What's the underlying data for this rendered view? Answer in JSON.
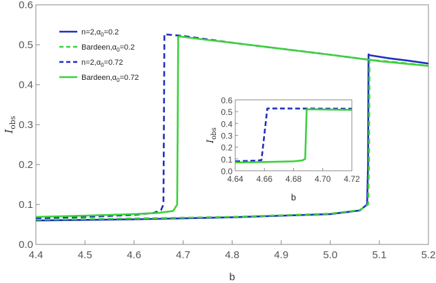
{
  "chart_data": [
    {
      "type": "line",
      "xlabel": "b",
      "ylabel": "I",
      "ylabel_sub": "obs",
      "xlim": [
        4.4,
        5.2
      ],
      "ylim": [
        0.0,
        0.6
      ],
      "xticks": [
        4.4,
        4.5,
        4.6,
        4.7,
        4.8,
        4.9,
        5.0,
        5.1,
        5.2
      ],
      "xtick_labels": [
        "4.4",
        "4.5",
        "4.6",
        "4.7",
        "4.8",
        "4.9",
        "5.0",
        "5.1",
        "5.2"
      ],
      "yticks": [
        0.0,
        0.1,
        0.2,
        0.3,
        0.4,
        0.5,
        0.6
      ],
      "ytick_labels": [
        "0.0",
        "0.1",
        "0.2",
        "0.3",
        "0.4",
        "0.5",
        "0.6"
      ],
      "grid": false,
      "legend_position": "top-left",
      "series": [
        {
          "name_main": "n=2,α",
          "name_sub": "0",
          "name_tail": "=0.2",
          "color": "#1f2fbf",
          "dash": "solid",
          "x": [
            4.4,
            4.6,
            4.8,
            5.0,
            5.06,
            5.075,
            5.077,
            5.078,
            5.08,
            5.12,
            5.16,
            5.2
          ],
          "y": [
            0.06,
            0.063,
            0.068,
            0.076,
            0.085,
            0.1,
            0.2,
            0.476,
            0.474,
            0.466,
            0.46,
            0.453
          ]
        },
        {
          "name_main": "Bardeen,α",
          "name_sub": "0",
          "name_tail": "=0.2",
          "color": "#3cd13c",
          "dash": "dashed",
          "x": [
            4.4,
            4.6,
            4.8,
            5.0,
            5.06,
            5.077,
            5.079,
            5.08,
            5.082,
            5.12,
            5.16,
            5.2
          ],
          "y": [
            0.062,
            0.065,
            0.069,
            0.077,
            0.086,
            0.1,
            0.2,
            0.463,
            0.462,
            0.458,
            0.453,
            0.447
          ]
        },
        {
          "name_main": "n=2,α",
          "name_sub": "0",
          "name_tail": "=0.72",
          "color": "#1f2fbf",
          "dash": "dashed",
          "x": [
            4.4,
            4.5,
            4.6,
            4.64,
            4.655,
            4.66,
            4.661,
            4.662,
            4.664,
            4.7,
            4.8,
            4.9,
            5.0,
            5.076
          ],
          "y": [
            0.066,
            0.069,
            0.074,
            0.079,
            0.086,
            0.1,
            0.3,
            0.527,
            0.526,
            0.522,
            0.505,
            0.49,
            0.475,
            0.463
          ]
        },
        {
          "name_main": "Bardeen,α",
          "name_sub": "0",
          "name_tail": "=0.72",
          "color": "#3cd13c",
          "dash": "solid",
          "x": [
            4.4,
            4.5,
            4.6,
            4.65,
            4.68,
            4.688,
            4.689,
            4.69,
            4.692,
            4.75,
            4.8,
            4.9,
            5.0,
            5.1,
            5.2
          ],
          "y": [
            0.069,
            0.072,
            0.076,
            0.079,
            0.084,
            0.1,
            0.3,
            0.52,
            0.521,
            0.512,
            0.505,
            0.49,
            0.475,
            0.459,
            0.447
          ]
        }
      ]
    },
    {
      "type": "line",
      "inset": true,
      "xlabel": "b",
      "ylabel": "I",
      "ylabel_sub": "obs",
      "xlim": [
        4.64,
        4.72
      ],
      "ylim": [
        0.0,
        0.6
      ],
      "xticks": [
        4.64,
        4.66,
        4.68,
        4.7,
        4.72
      ],
      "xtick_labels": [
        "4.64",
        "4.66",
        "4.68",
        "4.70",
        "4.72"
      ],
      "yticks": [
        0.0,
        0.1,
        0.2,
        0.3,
        0.4,
        0.5,
        0.6
      ],
      "ytick_labels": [
        "0.0",
        "0.1",
        "0.2",
        "0.3",
        "0.4",
        "0.5",
        "0.6"
      ],
      "grid": false,
      "series": [
        {
          "color": "#1f2fbf",
          "dash": "dashed",
          "x": [
            4.64,
            4.655,
            4.658,
            4.662,
            4.72
          ],
          "y": [
            0.08,
            0.086,
            0.09,
            0.527,
            0.525
          ]
        },
        {
          "color": "#3cd13c",
          "dash": "solid",
          "x": [
            4.64,
            4.66,
            4.68,
            4.686,
            4.688,
            4.689,
            4.72
          ],
          "y": [
            0.07,
            0.074,
            0.08,
            0.088,
            0.1,
            0.52,
            0.515
          ]
        }
      ]
    }
  ]
}
